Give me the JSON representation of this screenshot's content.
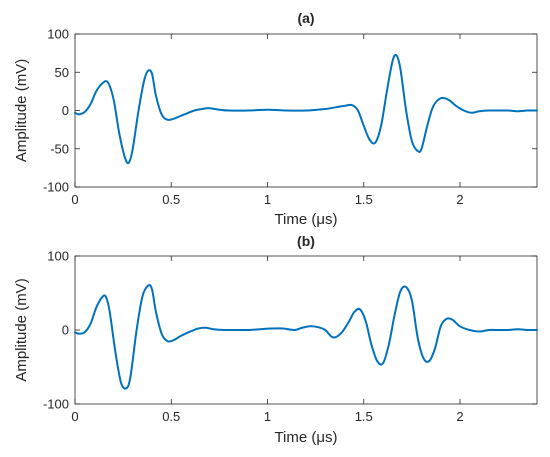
{
  "chart_data": [
    {
      "type": "line",
      "title": "(a)",
      "xlabel": "Time (μs)",
      "ylabel": "Amplitude (mV)",
      "xlim": [
        0,
        2.4
      ],
      "ylim": [
        -100,
        100
      ],
      "xticks": [
        0,
        0.5,
        1,
        1.5,
        2
      ],
      "xtick_labels": [
        "0",
        "0.5",
        "1",
        "1.5",
        "2"
      ],
      "yticks": [
        -100,
        -50,
        0,
        50,
        100
      ],
      "ytick_labels": [
        "-100",
        "-50",
        "0",
        "50",
        "100"
      ],
      "grid": false,
      "series": [
        {
          "color": "#0072BD",
          "x": [
            0,
            0.02,
            0.05,
            0.08,
            0.11,
            0.14,
            0.17,
            0.2,
            0.23,
            0.26,
            0.28,
            0.3,
            0.33,
            0.36,
            0.38,
            0.4,
            0.42,
            0.45,
            0.48,
            0.51,
            0.54,
            0.58,
            0.62,
            0.66,
            0.7,
            0.75,
            0.8,
            0.9,
            1.0,
            1.1,
            1.2,
            1.3,
            1.35,
            1.4,
            1.44,
            1.47,
            1.5,
            1.53,
            1.56,
            1.59,
            1.62,
            1.65,
            1.67,
            1.69,
            1.72,
            1.75,
            1.78,
            1.8,
            1.83,
            1.86,
            1.9,
            1.94,
            1.98,
            2.02,
            2.06,
            2.1,
            2.15,
            2.2,
            2.25,
            2.3,
            2.35,
            2.4
          ],
          "y": [
            -3,
            -5,
            -2,
            8,
            25,
            35,
            37,
            15,
            -30,
            -62,
            -68,
            -50,
            0,
            40,
            52,
            48,
            20,
            -5,
            -12,
            -11,
            -8,
            -4,
            0,
            2,
            3,
            1,
            0,
            0,
            1,
            0,
            0,
            2,
            4,
            6,
            7,
            0,
            -20,
            -38,
            -42,
            -20,
            25,
            65,
            72,
            55,
            0,
            -40,
            -53,
            -50,
            -20,
            5,
            16,
            14,
            6,
            0,
            -3,
            -1,
            0,
            0,
            0,
            -1,
            0,
            0
          ]
        }
      ]
    },
    {
      "type": "line",
      "title": "(b)",
      "xlabel": "Time (μs)",
      "ylabel": "Amplitude (mV)",
      "xlim": [
        0,
        2.4
      ],
      "ylim": [
        -100,
        100
      ],
      "xticks": [
        0,
        0.5,
        1,
        1.5,
        2
      ],
      "xtick_labels": [
        "0",
        "0.5",
        "1",
        "1.5",
        "2"
      ],
      "yticks": [
        -100,
        0,
        100
      ],
      "ytick_labels": [
        "-100",
        "0",
        "100"
      ],
      "grid": false,
      "series": [
        {
          "color": "#0072BD",
          "x": [
            0,
            0.02,
            0.05,
            0.08,
            0.11,
            0.14,
            0.16,
            0.18,
            0.21,
            0.24,
            0.27,
            0.29,
            0.32,
            0.35,
            0.38,
            0.4,
            0.42,
            0.45,
            0.48,
            0.51,
            0.55,
            0.6,
            0.64,
            0.68,
            0.72,
            0.78,
            0.84,
            0.9,
            0.96,
            1.02,
            1.08,
            1.14,
            1.18,
            1.22,
            1.26,
            1.3,
            1.34,
            1.38,
            1.42,
            1.45,
            1.48,
            1.51,
            1.54,
            1.57,
            1.6,
            1.63,
            1.66,
            1.69,
            1.72,
            1.75,
            1.78,
            1.81,
            1.84,
            1.87,
            1.9,
            1.93,
            1.96,
            2.0,
            2.05,
            2.1,
            2.15,
            2.2,
            2.25,
            2.3,
            2.35,
            2.4
          ],
          "y": [
            -3,
            -5,
            -3,
            8,
            30,
            44,
            45,
            25,
            -30,
            -72,
            -78,
            -60,
            0,
            45,
            60,
            55,
            25,
            -5,
            -15,
            -14,
            -8,
            -2,
            2,
            3,
            1,
            0,
            0,
            0,
            1,
            2,
            2,
            0,
            3,
            5,
            4,
            0,
            -10,
            -5,
            10,
            24,
            28,
            12,
            -20,
            -42,
            -45,
            -20,
            20,
            52,
            58,
            40,
            -10,
            -38,
            -42,
            -25,
            5,
            15,
            14,
            5,
            0,
            -2,
            0,
            0,
            0,
            1,
            0,
            0
          ]
        }
      ]
    }
  ]
}
